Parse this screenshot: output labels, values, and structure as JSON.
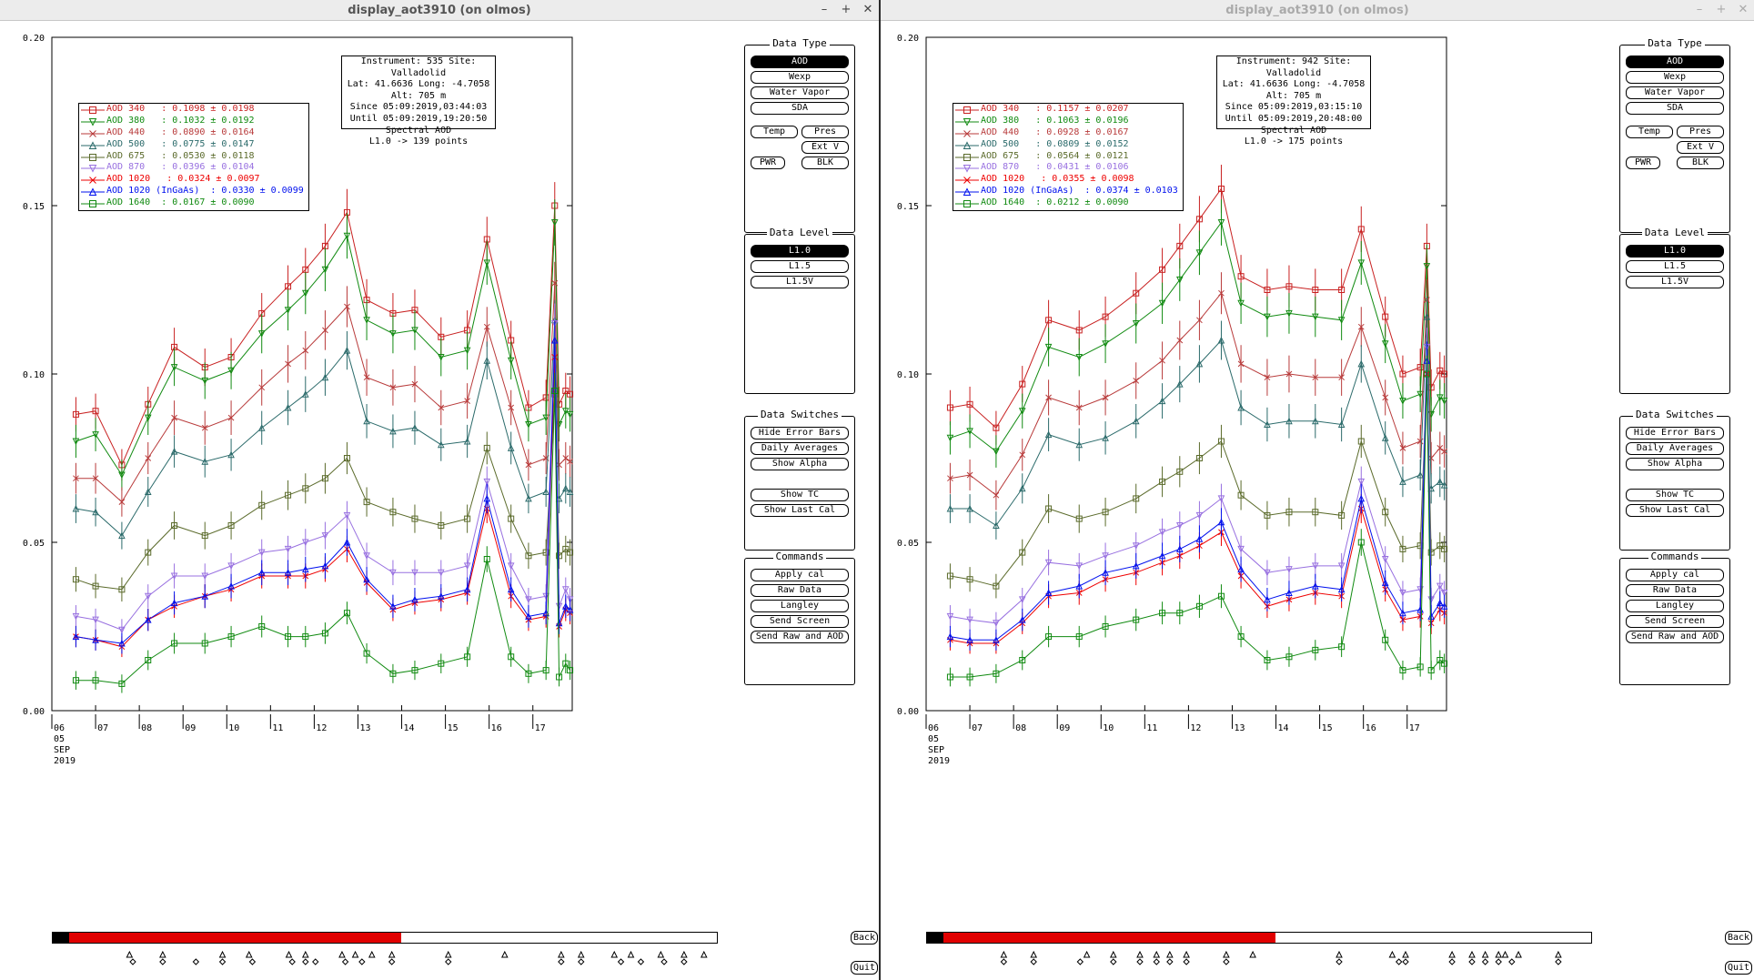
{
  "windows": [
    {
      "title": "display_aot3910 (on olmos)",
      "active": true,
      "info_lines": [
        "Instrument: 535 Site: Valladolid",
        "Lat: 41.6636 Long: -4.7058 Alt: 705 m",
        "Since 05:09:2019,03:44:03",
        "Until 05:09:2019,19:20:50",
        "Spectral AOD",
        "L1.0 -> 139 points"
      ],
      "legend": [
        {
          "label": "AOD 340   : 0.1098 ± 0.0198",
          "color": "#c82020",
          "marker": "square"
        },
        {
          "label": "AOD 380   : 0.1032 ± 0.0192",
          "color": "#108a10",
          "marker": "tridown"
        },
        {
          "label": "AOD 440   : 0.0890 ± 0.0164",
          "color": "#b83a3a",
          "marker": "x"
        },
        {
          "label": "AOD 500   : 0.0775 ± 0.0147",
          "color": "#2a6a6a",
          "marker": "triup"
        },
        {
          "label": "AOD 675   : 0.0530 ± 0.0118",
          "color": "#5a6a2a",
          "marker": "square"
        },
        {
          "label": "AOD 870   : 0.0396 ± 0.0104",
          "color": "#9870e0",
          "marker": "tridown"
        },
        {
          "label": "AOD 1020   : 0.0324 ± 0.0097",
          "color": "#ee0000",
          "marker": "x"
        },
        {
          "label": "AOD 1020 (InGaAs)  : 0.0330 ± 0.0099",
          "color": "#0010ee",
          "marker": "triup"
        },
        {
          "label": "AOD 1640  : 0.0167 ± 0.0090",
          "color": "#108a10",
          "marker": "square"
        }
      ],
      "triangle_markers": [
        0.095,
        0.145,
        0.235,
        0.275,
        0.335,
        0.36,
        0.415,
        0.435,
        0.46,
        0.49,
        0.575,
        0.66,
        0.745,
        0.775,
        0.825,
        0.85,
        0.895,
        0.93,
        0.96
      ],
      "diamond_markers": [
        0.1,
        0.145,
        0.195,
        0.235,
        0.28,
        0.34,
        0.36,
        0.375,
        0.42,
        0.445,
        0.49,
        0.575,
        0.745,
        0.775,
        0.835,
        0.865,
        0.9,
        0.93
      ]
    },
    {
      "title": "display_aot3910 (on olmos)",
      "active": false,
      "info_lines": [
        "Instrument: 942 Site: Valladolid",
        "Lat: 41.6636 Long: -4.7058 Alt: 705 m",
        "Since 05:09:2019,03:15:10",
        "Until 05:09:2019,20:48:00",
        "Spectral AOD",
        "L1.0 -> 175 points"
      ],
      "legend": [
        {
          "label": "AOD 340   : 0.1157 ± 0.0207",
          "color": "#c82020",
          "marker": "square"
        },
        {
          "label": "AOD 380   : 0.1063 ± 0.0196",
          "color": "#108a10",
          "marker": "tridown"
        },
        {
          "label": "AOD 440   : 0.0928 ± 0.0167",
          "color": "#b83a3a",
          "marker": "x"
        },
        {
          "label": "AOD 500   : 0.0809 ± 0.0152",
          "color": "#2a6a6a",
          "marker": "triup"
        },
        {
          "label": "AOD 675   : 0.0564 ± 0.0121",
          "color": "#5a6a2a",
          "marker": "square"
        },
        {
          "label": "AOD 870   : 0.0431 ± 0.0106",
          "color": "#9870e0",
          "marker": "tridown"
        },
        {
          "label": "AOD 1020   : 0.0355 ± 0.0098",
          "color": "#ee0000",
          "marker": "x"
        },
        {
          "label": "AOD 1020 (InGaAs)  : 0.0374 ± 0.0103",
          "color": "#0010ee",
          "marker": "triup"
        },
        {
          "label": "AOD 1640  : 0.0212 ± 0.0090",
          "color": "#108a10",
          "marker": "square"
        }
      ],
      "triangle_markers": [
        0.095,
        0.14,
        0.22,
        0.26,
        0.3,
        0.325,
        0.345,
        0.37,
        0.43,
        0.47,
        0.6,
        0.68,
        0.7,
        0.77,
        0.8,
        0.82,
        0.84,
        0.85,
        0.87,
        0.93
      ],
      "diamond_markers": [
        0.095,
        0.14,
        0.21,
        0.26,
        0.3,
        0.325,
        0.345,
        0.37,
        0.43,
        0.6,
        0.69,
        0.7,
        0.77,
        0.8,
        0.82,
        0.84,
        0.86,
        0.93
      ]
    }
  ],
  "panels": {
    "data_type": {
      "title": "Data Type",
      "aod": "AOD",
      "wexp": "Wexp",
      "water_vapor": "Water Vapor",
      "sda": "SDA",
      "temp": "Temp",
      "pres": "Pres",
      "ext_v": "Ext V",
      "pwr": "PWR",
      "blk": "BLK"
    },
    "data_level": {
      "title": "Data Level",
      "l10": "L1.0",
      "l15": "L1.5",
      "l15v": "L1.5V"
    },
    "data_switches": {
      "title": "Data Switches",
      "hide_error_bars": "Hide Error Bars",
      "daily_averages": "Daily Averages",
      "show_alpha": "Show Alpha",
      "show_tc": "Show TC",
      "show_last_cal": "Show Last Cal"
    },
    "commands": {
      "title": "Commands",
      "apply_cal": "Apply cal",
      "raw_data": "Raw Data",
      "langley": "Langley",
      "send_screen": "Send Screen",
      "send_raw_aod": "Send Raw and AOD"
    },
    "back": "Back",
    "quit": "Quit"
  },
  "chart_data": [
    {
      "type": "line",
      "ylim": [
        0,
        0.2
      ],
      "y_ticks": [
        "0.00",
        "0.05",
        "0.10",
        "0.15",
        "0.20"
      ],
      "x_ticks": [
        "06",
        "07",
        "08",
        "09",
        "10",
        "11",
        "12",
        "13",
        "14",
        "15",
        "16",
        "17"
      ],
      "x_first_sub": [
        "05",
        "SEP",
        "2019"
      ],
      "xlim": [
        6,
        17.9
      ],
      "x": [
        6.55,
        7.0,
        7.6,
        8.2,
        8.8,
        9.5,
        10.1,
        10.8,
        11.4,
        11.8,
        12.25,
        12.75,
        13.2,
        13.8,
        14.3,
        14.9,
        15.5,
        15.95,
        16.5,
        16.9,
        17.3,
        17.5,
        17.6,
        17.75,
        17.85
      ],
      "series": [
        {
          "name": "AOD 340",
          "color": "#c82020",
          "marker": "square",
          "values": [
            0.088,
            0.089,
            0.073,
            0.091,
            0.108,
            0.102,
            0.105,
            0.118,
            0.126,
            0.131,
            0.138,
            0.148,
            0.122,
            0.118,
            0.119,
            0.111,
            0.113,
            0.14,
            0.11,
            0.09,
            0.093,
            0.15,
            0.091,
            0.095,
            0.094
          ]
        },
        {
          "name": "AOD 380",
          "color": "#108a10",
          "marker": "tridown",
          "values": [
            0.08,
            0.082,
            0.07,
            0.087,
            0.102,
            0.098,
            0.101,
            0.112,
            0.119,
            0.124,
            0.131,
            0.141,
            0.116,
            0.112,
            0.113,
            0.105,
            0.107,
            0.133,
            0.104,
            0.085,
            0.087,
            0.145,
            0.085,
            0.089,
            0.088
          ]
        },
        {
          "name": "AOD 440",
          "color": "#b83a3a",
          "marker": "x",
          "values": [
            0.069,
            0.069,
            0.062,
            0.075,
            0.087,
            0.084,
            0.087,
            0.096,
            0.103,
            0.107,
            0.113,
            0.12,
            0.099,
            0.096,
            0.097,
            0.09,
            0.092,
            0.114,
            0.09,
            0.073,
            0.075,
            0.127,
            0.073,
            0.075,
            0.074
          ]
        },
        {
          "name": "AOD 500",
          "color": "#2a6a6a",
          "marker": "triup",
          "values": [
            0.06,
            0.059,
            0.052,
            0.065,
            0.077,
            0.074,
            0.076,
            0.084,
            0.09,
            0.094,
            0.099,
            0.107,
            0.086,
            0.083,
            0.084,
            0.079,
            0.08,
            0.104,
            0.078,
            0.063,
            0.065,
            0.116,
            0.063,
            0.066,
            0.065
          ]
        },
        {
          "name": "AOD 675",
          "color": "#5a6a2a",
          "marker": "square",
          "values": [
            0.039,
            0.037,
            0.036,
            0.047,
            0.055,
            0.052,
            0.055,
            0.061,
            0.064,
            0.066,
            0.069,
            0.075,
            0.062,
            0.059,
            0.057,
            0.055,
            0.057,
            0.078,
            0.057,
            0.046,
            0.047,
            0.094,
            0.046,
            0.048,
            0.047
          ]
        },
        {
          "name": "AOD 870",
          "color": "#9870e0",
          "marker": "tridown",
          "values": [
            0.028,
            0.027,
            0.024,
            0.034,
            0.04,
            0.04,
            0.043,
            0.047,
            0.048,
            0.05,
            0.052,
            0.058,
            0.046,
            0.041,
            0.041,
            0.041,
            0.043,
            0.068,
            0.043,
            0.033,
            0.034,
            0.115,
            0.031,
            0.036,
            0.033
          ]
        },
        {
          "name": "AOD 1020",
          "color": "#ee0000",
          "marker": "x",
          "values": [
            0.022,
            0.021,
            0.019,
            0.027,
            0.031,
            0.034,
            0.036,
            0.04,
            0.04,
            0.04,
            0.042,
            0.048,
            0.038,
            0.03,
            0.032,
            0.033,
            0.035,
            0.06,
            0.034,
            0.027,
            0.028,
            0.105,
            0.025,
            0.03,
            0.029
          ]
        },
        {
          "name": "AOD 1020 (InGaAs)",
          "color": "#0010ee",
          "marker": "triup",
          "values": [
            0.022,
            0.021,
            0.02,
            0.027,
            0.032,
            0.034,
            0.037,
            0.041,
            0.041,
            0.042,
            0.043,
            0.05,
            0.039,
            0.031,
            0.033,
            0.034,
            0.036,
            0.063,
            0.036,
            0.028,
            0.029,
            0.11,
            0.026,
            0.031,
            0.03
          ]
        },
        {
          "name": "AOD 1640",
          "color": "#108a10",
          "marker": "square",
          "values": [
            0.009,
            0.009,
            0.008,
            0.015,
            0.02,
            0.02,
            0.022,
            0.025,
            0.022,
            0.022,
            0.023,
            0.029,
            0.017,
            0.011,
            0.012,
            0.014,
            0.016,
            0.045,
            0.016,
            0.011,
            0.012,
            0.095,
            0.01,
            0.014,
            0.012
          ]
        }
      ]
    },
    {
      "type": "line",
      "ylim": [
        0,
        0.2
      ],
      "y_ticks": [
        "0.00",
        "0.05",
        "0.10",
        "0.15",
        "0.20"
      ],
      "x_ticks": [
        "06",
        "07",
        "08",
        "09",
        "10",
        "11",
        "12",
        "13",
        "14",
        "15",
        "16",
        "17"
      ],
      "x_first_sub": [
        "05",
        "SEP",
        "2019"
      ],
      "xlim": [
        6,
        17.9
      ],
      "x": [
        6.55,
        7.0,
        7.6,
        8.2,
        8.8,
        9.5,
        10.1,
        10.8,
        11.4,
        11.8,
        12.25,
        12.75,
        13.2,
        13.8,
        14.3,
        14.9,
        15.5,
        15.95,
        16.5,
        16.9,
        17.3,
        17.45,
        17.55,
        17.75,
        17.85
      ],
      "series": [
        {
          "name": "AOD 340",
          "color": "#c82020",
          "marker": "square",
          "values": [
            0.09,
            0.091,
            0.084,
            0.097,
            0.116,
            0.113,
            0.117,
            0.124,
            0.131,
            0.138,
            0.146,
            0.155,
            0.129,
            0.125,
            0.126,
            0.125,
            0.125,
            0.143,
            0.117,
            0.1,
            0.102,
            0.138,
            0.096,
            0.101,
            0.1
          ]
        },
        {
          "name": "AOD 380",
          "color": "#108a10",
          "marker": "tridown",
          "values": [
            0.081,
            0.083,
            0.077,
            0.089,
            0.108,
            0.105,
            0.109,
            0.115,
            0.121,
            0.128,
            0.136,
            0.145,
            0.121,
            0.117,
            0.118,
            0.117,
            0.116,
            0.133,
            0.109,
            0.092,
            0.094,
            0.132,
            0.088,
            0.093,
            0.092
          ]
        },
        {
          "name": "AOD 440",
          "color": "#b83a3a",
          "marker": "x",
          "values": [
            0.069,
            0.07,
            0.064,
            0.076,
            0.093,
            0.09,
            0.093,
            0.098,
            0.104,
            0.11,
            0.116,
            0.124,
            0.103,
            0.099,
            0.1,
            0.099,
            0.099,
            0.114,
            0.093,
            0.078,
            0.08,
            0.122,
            0.075,
            0.078,
            0.077
          ]
        },
        {
          "name": "AOD 500",
          "color": "#2a6a6a",
          "marker": "triup",
          "values": [
            0.06,
            0.06,
            0.055,
            0.066,
            0.082,
            0.079,
            0.081,
            0.086,
            0.092,
            0.097,
            0.103,
            0.11,
            0.09,
            0.085,
            0.086,
            0.086,
            0.085,
            0.103,
            0.081,
            0.068,
            0.07,
            0.117,
            0.066,
            0.068,
            0.067
          ]
        },
        {
          "name": "AOD 675",
          "color": "#5a6a2a",
          "marker": "square",
          "values": [
            0.04,
            0.039,
            0.037,
            0.047,
            0.06,
            0.057,
            0.059,
            0.063,
            0.068,
            0.071,
            0.075,
            0.08,
            0.064,
            0.058,
            0.059,
            0.059,
            0.058,
            0.08,
            0.059,
            0.048,
            0.049,
            0.1,
            0.047,
            0.049,
            0.048
          ]
        },
        {
          "name": "AOD 870",
          "color": "#9870e0",
          "marker": "tridown",
          "values": [
            0.028,
            0.027,
            0.026,
            0.033,
            0.044,
            0.043,
            0.046,
            0.049,
            0.053,
            0.055,
            0.058,
            0.063,
            0.048,
            0.041,
            0.042,
            0.043,
            0.043,
            0.068,
            0.045,
            0.035,
            0.036,
            0.108,
            0.033,
            0.037,
            0.035
          ]
        },
        {
          "name": "AOD 1020",
          "color": "#ee0000",
          "marker": "x",
          "values": [
            0.021,
            0.02,
            0.02,
            0.026,
            0.034,
            0.035,
            0.039,
            0.041,
            0.044,
            0.046,
            0.049,
            0.053,
            0.04,
            0.031,
            0.033,
            0.035,
            0.034,
            0.06,
            0.036,
            0.027,
            0.028,
            0.1,
            0.026,
            0.03,
            0.029
          ]
        },
        {
          "name": "AOD 1020 (InGaAs)",
          "color": "#0010ee",
          "marker": "triup",
          "values": [
            0.022,
            0.021,
            0.021,
            0.027,
            0.035,
            0.037,
            0.041,
            0.043,
            0.046,
            0.048,
            0.051,
            0.056,
            0.042,
            0.033,
            0.035,
            0.037,
            0.036,
            0.063,
            0.038,
            0.029,
            0.03,
            0.104,
            0.028,
            0.032,
            0.031
          ]
        },
        {
          "name": "AOD 1640",
          "color": "#108a10",
          "marker": "square",
          "values": [
            0.01,
            0.01,
            0.011,
            0.015,
            0.022,
            0.022,
            0.025,
            0.027,
            0.029,
            0.029,
            0.031,
            0.034,
            0.022,
            0.015,
            0.016,
            0.018,
            0.019,
            0.05,
            0.021,
            0.012,
            0.013,
            0.1,
            0.012,
            0.015,
            0.014
          ]
        }
      ]
    }
  ]
}
